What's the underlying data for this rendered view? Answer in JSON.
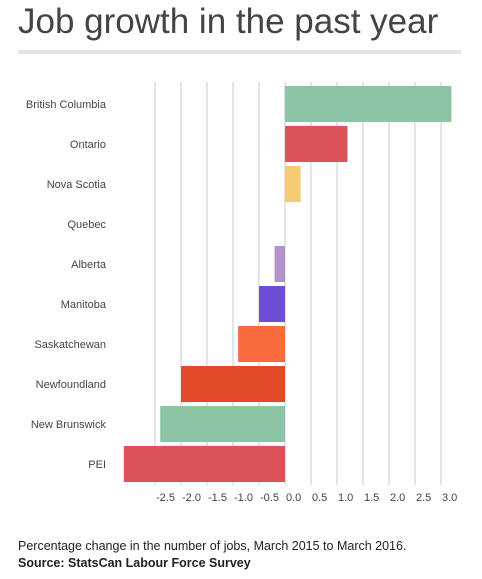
{
  "title": "Job growth in the past year",
  "note": "Percentage change in the number of jobs, March 2015 to March 2016.",
  "source": "Source: StatsCan Labour Force Survey",
  "chart_data": {
    "type": "bar",
    "orientation": "horizontal",
    "title": "Job growth in the past year",
    "xlabel": "",
    "ylabel": "",
    "xlim": [
      -3.1,
      3.2
    ],
    "grid": true,
    "categories": [
      "British Columbia",
      "Ontario",
      "Nova Scotia",
      "Quebec",
      "Alberta",
      "Manitoba",
      "Saskatchewan",
      "Newfoundland",
      "New Brunswick",
      "PEI"
    ],
    "values": [
      3.2,
      1.2,
      0.3,
      0.0,
      -0.2,
      -0.5,
      -0.9,
      -2.0,
      -2.4,
      -3.1
    ],
    "colors": [
      "#8cc4a6",
      "#dd5258",
      "#f4ca73",
      "#8cc4a6",
      "#b193c7",
      "#6e4ed6",
      "#fa6a3f",
      "#e34b28",
      "#8cc4a6",
      "#dd5258"
    ],
    "ticks": [
      -2.5,
      -2.0,
      -1.5,
      -1.0,
      -0.5,
      0.0,
      0.5,
      1.0,
      1.5,
      2.0,
      2.5,
      3.0
    ],
    "tick_labels": [
      "-2.5",
      "-2.0",
      "-1.5",
      "-1.0",
      "-0.5",
      "0.0",
      "0.5",
      "1.0",
      "1.5",
      "2.0",
      "2.5",
      "3.0"
    ]
  }
}
